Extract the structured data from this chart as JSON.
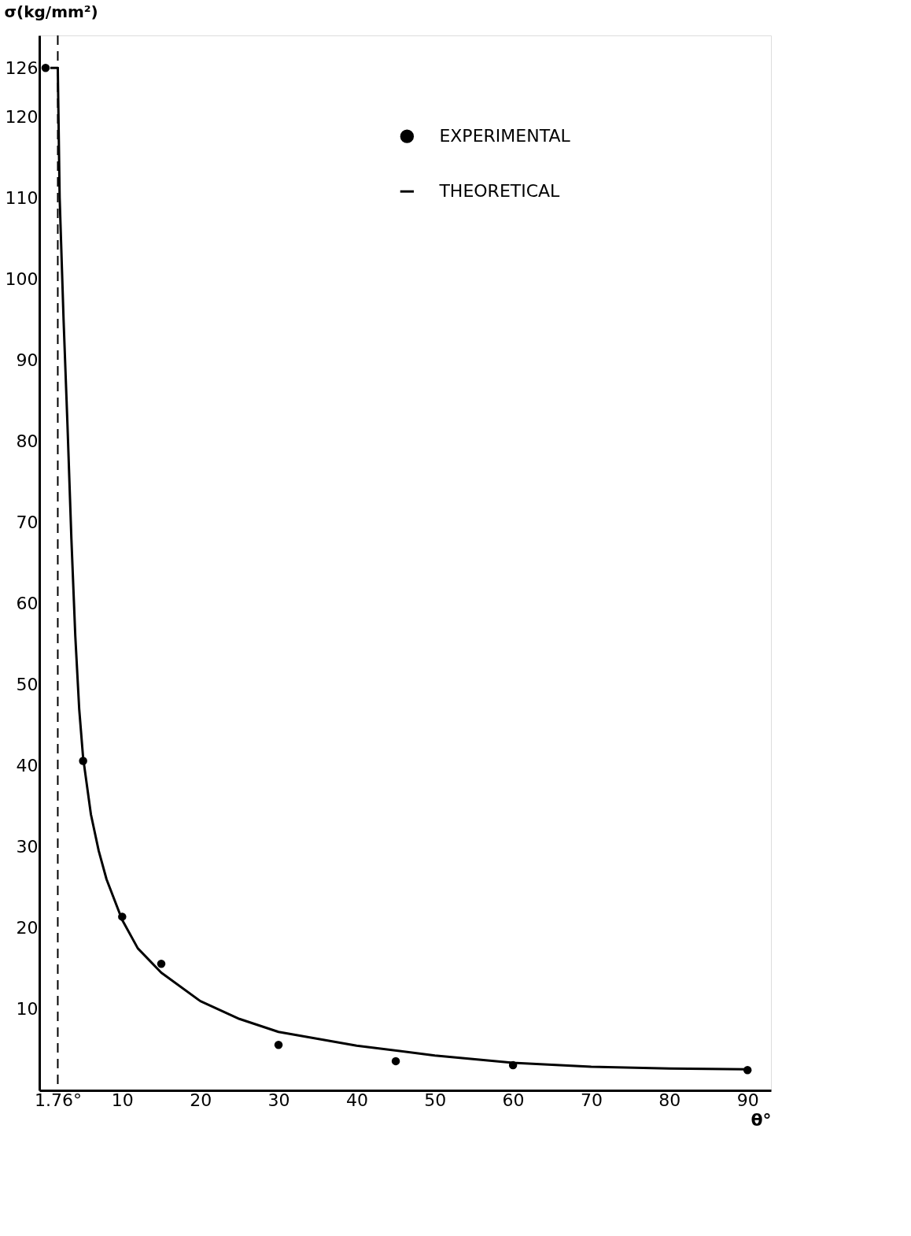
{
  "chart_data": {
    "type": "scatter",
    "xlabel": "θ°",
    "ylabel": "σ(kg/mm²)",
    "xlim": [
      -0.6,
      93
    ],
    "ylim": [
      0,
      130
    ],
    "xticks": [
      {
        "value": 1.76,
        "label": "1.76°"
      },
      10,
      20,
      30,
      40,
      50,
      60,
      70,
      80,
      90
    ],
    "yticks": [
      10,
      20,
      30,
      40,
      50,
      60,
      70,
      80,
      90,
      100,
      110,
      120,
      126
    ],
    "grid": false,
    "legend": "top right",
    "ref_lines": [
      {
        "axis": "x",
        "value": 1.76,
        "line_style": "dashed",
        "color": "#000000"
      }
    ],
    "series": [
      {
        "name": "EXPERIMENTAL",
        "marker": "circle",
        "color": "#000000",
        "x": [
          0.2,
          5,
          10,
          15,
          30,
          45,
          60,
          90
        ],
        "values": [
          126,
          40.6,
          21.4,
          15.6,
          5.6,
          3.6,
          3.1,
          2.5
        ]
      },
      {
        "name": "THEORETICAL",
        "type": "line",
        "line_style": "solid",
        "color": "#000000",
        "x": [
          0.8,
          1.76,
          2.0,
          2.5,
          3,
          3.5,
          4,
          4.5,
          5,
          6,
          7,
          8,
          10,
          12,
          15,
          20,
          25,
          30,
          40,
          50,
          60,
          70,
          80,
          90
        ],
        "values": [
          126,
          126,
          110,
          95,
          82,
          68,
          56,
          47,
          41,
          34,
          29.5,
          26,
          21,
          17.5,
          14.5,
          11,
          8.8,
          7.2,
          5.5,
          4.3,
          3.4,
          2.9,
          2.7,
          2.6
        ]
      }
    ]
  }
}
